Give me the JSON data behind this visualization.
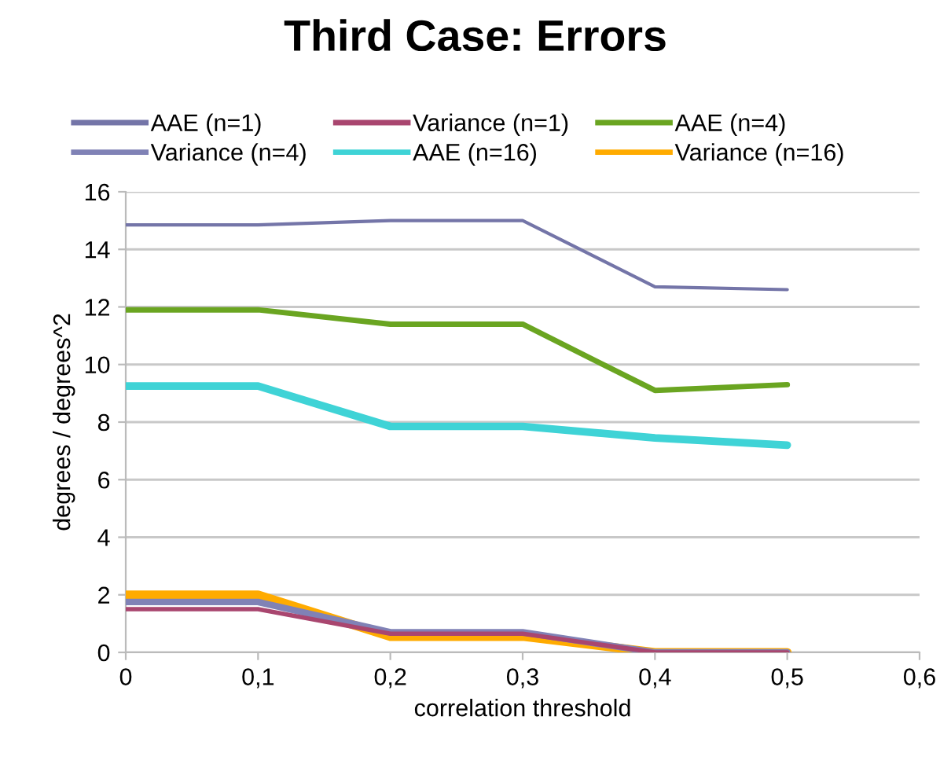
{
  "chart_data": {
    "type": "line",
    "title": "Third Case: Errors",
    "xlabel": "correlation threshold",
    "ylabel": "degrees / degrees^2",
    "x": [
      0,
      0.1,
      0.2,
      0.3,
      0.4,
      0.5
    ],
    "series": [
      {
        "name": "AAE (n=1)",
        "color": "#7475a8",
        "values": [
          14.85,
          14.85,
          15.0,
          15.0,
          12.7,
          12.6
        ]
      },
      {
        "name": "Variance (n=1)",
        "color": "#a9466f",
        "values": [
          1.5,
          1.5,
          0.65,
          0.65,
          0,
          0
        ]
      },
      {
        "name": "AAE (n=4)",
        "color": "#6aa521",
        "values": [
          11.9,
          11.9,
          11.4,
          11.4,
          9.1,
          9.3
        ]
      },
      {
        "name": "Variance (n=4)",
        "color": "#8082b6",
        "values": [
          1.75,
          1.75,
          0.7,
          0.7,
          0,
          0
        ]
      },
      {
        "name": "AAE (n=16)",
        "color": "#3fd3d6",
        "values": [
          9.25,
          9.25,
          7.85,
          7.85,
          7.45,
          7.2
        ]
      },
      {
        "name": "Variance (n=16)",
        "color": "#ffab00",
        "values": [
          2.0,
          2.0,
          0.55,
          0.55,
          0,
          0
        ]
      }
    ],
    "xlim": [
      0,
      0.6
    ],
    "xticks": [
      0,
      {
        "value": 0.1,
        "label": "0,1"
      },
      {
        "value": 0.2,
        "label": "0,2"
      },
      {
        "value": 0.3,
        "label": "0,3"
      },
      {
        "value": 0.4,
        "label": "0,4"
      },
      {
        "value": 0.5,
        "label": "0,5"
      },
      {
        "value": 0.6,
        "label": "0,6"
      }
    ],
    "ylim": [
      0,
      16
    ],
    "yticks": [
      0,
      2,
      4,
      6,
      8,
      10,
      12,
      14,
      16
    ],
    "grid": "y",
    "legend": "top",
    "marker": "none",
    "line_style": "solid"
  }
}
